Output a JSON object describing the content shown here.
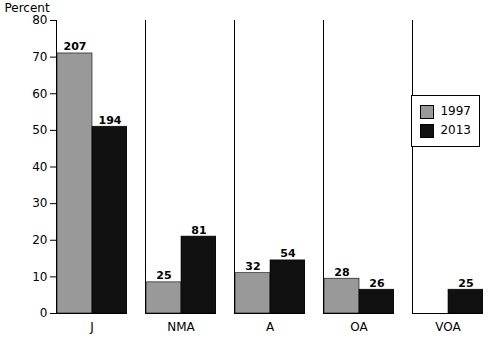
{
  "chart_data": {
    "type": "bar",
    "categories": [
      "J",
      "NMA",
      "A",
      "OA",
      "VOA"
    ],
    "series": [
      {
        "name": "1997",
        "color": "#999999",
        "values": [
          71,
          8.5,
          11,
          9.5,
          0
        ],
        "counts": [
          207,
          25,
          32,
          28,
          null
        ]
      },
      {
        "name": "2013",
        "color": "#111111",
        "values": [
          51,
          21,
          14.5,
          6.5,
          6.5
        ],
        "counts": [
          194,
          81,
          54,
          26,
          25
        ]
      }
    ],
    "ylabel": "Percent",
    "ylim": [
      0,
      80
    ],
    "yticks": [
      0,
      10,
      20,
      30,
      40,
      50,
      60,
      70,
      80
    ],
    "grid": false,
    "legend": "right"
  }
}
